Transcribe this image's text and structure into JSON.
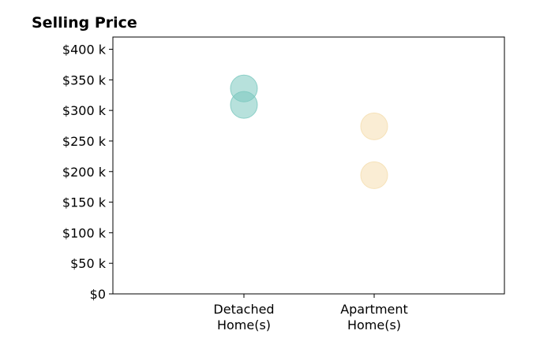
{
  "chart_data": {
    "type": "scatter",
    "title": "Selling Price",
    "xlabel": "",
    "ylabel": "",
    "categories": [
      [
        "Detached",
        "Home(s)"
      ],
      [
        "Apartment",
        "Home(s)"
      ]
    ],
    "ylim": [
      0,
      420000
    ],
    "yticks": [
      {
        "value": 0,
        "label": "$0"
      },
      {
        "value": 50000,
        "label": "$50 k"
      },
      {
        "value": 100000,
        "label": "$100 k"
      },
      {
        "value": 150000,
        "label": "$150 k"
      },
      {
        "value": 200000,
        "label": "$200 k"
      },
      {
        "value": 250000,
        "label": "$250 k"
      },
      {
        "value": 300000,
        "label": "$300 k"
      },
      {
        "value": 350000,
        "label": "$350 k"
      },
      {
        "value": 400000,
        "label": "$400 k"
      }
    ],
    "series": [
      {
        "category_index": 0,
        "color": "#7cc9bf",
        "values": [
          309000,
          336000
        ]
      },
      {
        "category_index": 1,
        "color": "#f5deb0",
        "values": [
          274000,
          194000
        ]
      }
    ],
    "grid": false,
    "legend": "none"
  }
}
